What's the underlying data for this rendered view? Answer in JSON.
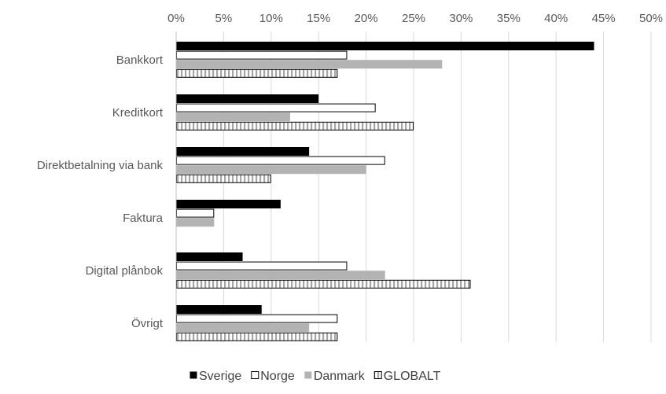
{
  "chart_data": {
    "type": "bar",
    "orientation": "horizontal",
    "title": "",
    "xlabel": "",
    "ylabel": "",
    "xlim": [
      0,
      50
    ],
    "x_ticks": [
      "0%",
      "5%",
      "10%",
      "15%",
      "20%",
      "25%",
      "30%",
      "35%",
      "40%",
      "45%",
      "50%"
    ],
    "x_axis_position": "top",
    "grid": true,
    "legend_position": "bottom",
    "categories": [
      "Bankkort",
      "Kreditkort",
      "Direktbetalning via bank",
      "Faktura",
      "Digital plånbok",
      "Övrigt"
    ],
    "series": [
      {
        "name": "Sverige",
        "values": [
          44,
          15,
          14,
          11,
          7,
          9
        ],
        "color": "#000000",
        "pattern": "solid"
      },
      {
        "name": "Norge",
        "values": [
          18,
          21,
          22,
          4,
          18,
          17
        ],
        "color": "#ffffff",
        "pattern": "outline"
      },
      {
        "name": "Danmark",
        "values": [
          28,
          12,
          20,
          4,
          22,
          14
        ],
        "color": "#b3b3b3",
        "pattern": "solid"
      },
      {
        "name": "GLOBALT",
        "values": [
          17,
          25,
          10,
          0,
          31,
          17
        ],
        "color": "#ffffff",
        "pattern": "vertical-stripes"
      }
    ]
  }
}
